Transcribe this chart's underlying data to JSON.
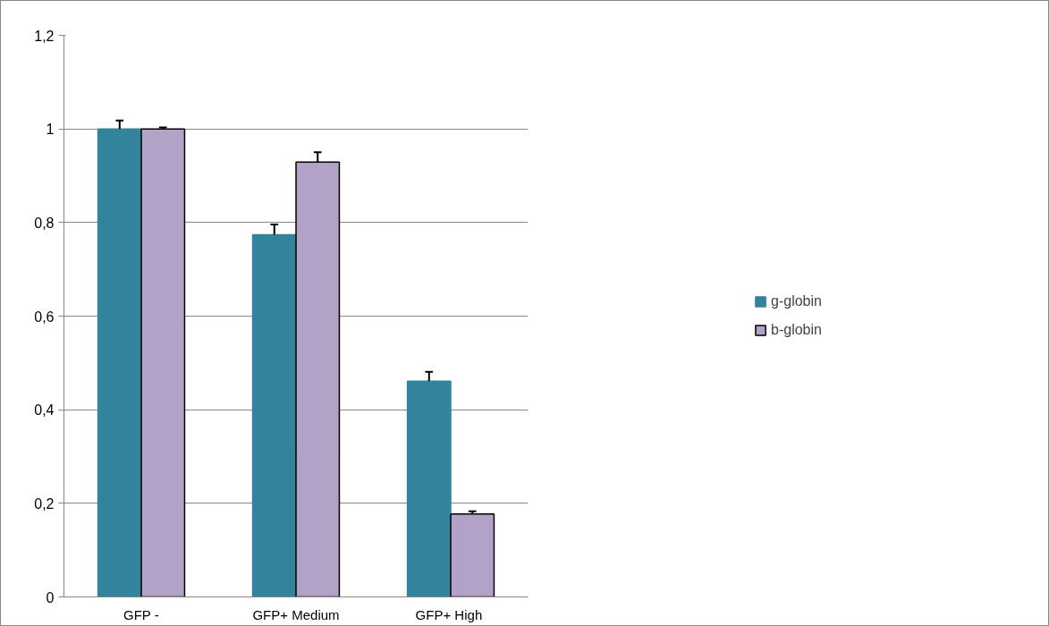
{
  "chart_data": {
    "type": "bar",
    "categories": [
      "GFP -",
      "GFP+ Medium",
      "GFP+  High"
    ],
    "series": [
      {
        "name": "g-globin",
        "color": "#31849b",
        "values": [
          1.0,
          0.774,
          0.461
        ],
        "errors": [
          0.018,
          0.022,
          0.02
        ]
      },
      {
        "name": "b-globin",
        "color": "#b3a2c7",
        "values": [
          1.0,
          0.929,
          0.177
        ],
        "errors": [
          0.003,
          0.021,
          0.006
        ]
      }
    ],
    "ylim": [
      0,
      1.2
    ],
    "yticks": [
      {
        "value": 0,
        "label": "0"
      },
      {
        "value": 0.2,
        "label": "0,2"
      },
      {
        "value": 0.4,
        "label": "0,4"
      },
      {
        "value": 0.6,
        "label": "0,6"
      },
      {
        "value": 0.8,
        "label": "0,8"
      },
      {
        "value": 1,
        "label": "1"
      },
      {
        "value": 1.2,
        "label": "1,2"
      }
    ],
    "grid": "y",
    "legend": "right"
  }
}
